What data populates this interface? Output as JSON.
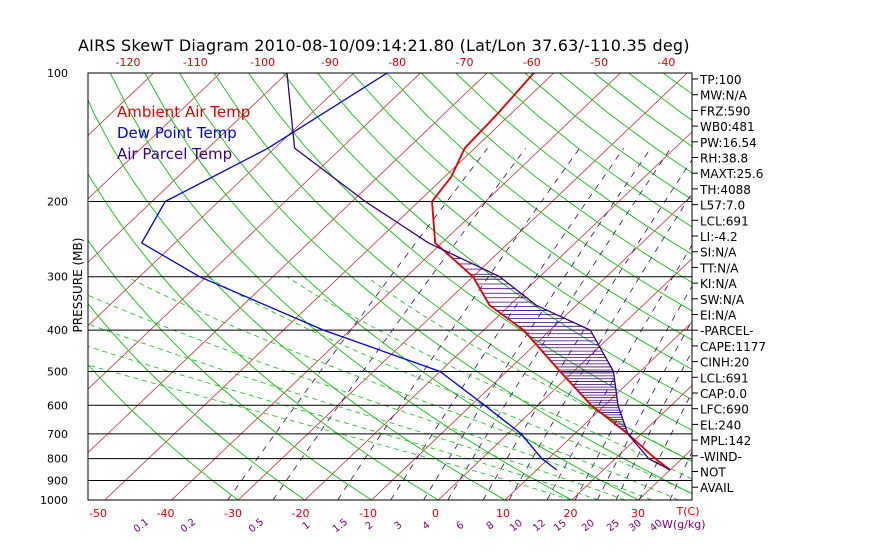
{
  "title": "AIRS SkewT Diagram 2010-08-10/09:14:21.80 (Lat/Lon 37.63/-110.35 deg)",
  "chart_data": {
    "type": "line",
    "title": "AIRS SkewT Diagram 2010-08-10/09:14:21.80 (Lat/Lon 37.63/-110.35 deg)",
    "ylabel": "PRESSURE (MB)",
    "xlabel_bottom_unit": "T(C)",
    "mixing_ratio_unit": "W(g/kg)",
    "y_scale": "log",
    "ylim": [
      1000,
      100
    ],
    "pressure_ticks": [
      100,
      200,
      300,
      400,
      500,
      600,
      700,
      800,
      900,
      1000
    ],
    "top_temp_ticks": [
      -120,
      -110,
      -100,
      -90,
      -80,
      -70,
      -60,
      -50,
      -40
    ],
    "bottom_temp_ticks": [
      -50,
      -40,
      -30,
      -20,
      -10,
      0,
      10,
      20,
      30
    ],
    "mixing_ratio_ticks": [
      "0.1",
      "0.2",
      "0.5",
      "1",
      "1.5",
      "2",
      "3",
      "4",
      "6",
      "8",
      "10",
      "12",
      "15",
      "20",
      "25",
      "30",
      "40"
    ],
    "legend": [
      "Ambient Air Temp",
      "Dew Point Temp",
      "Air Parcel Temp"
    ],
    "legend_position": "top-left",
    "series": [
      {
        "name": "Ambient Air Temp",
        "color": "#e00000",
        "points": [
          [
            100,
            -63
          ],
          [
            125,
            -62
          ],
          [
            150,
            -61.5
          ],
          [
            175,
            -59
          ],
          [
            200,
            -58
          ],
          [
            250,
            -51
          ],
          [
            300,
            -40
          ],
          [
            350,
            -33
          ],
          [
            400,
            -24
          ],
          [
            500,
            -12
          ],
          [
            600,
            -2
          ],
          [
            700,
            8
          ],
          [
            800,
            16
          ],
          [
            850,
            20
          ]
        ]
      },
      {
        "name": "Dew Point Temp",
        "color": "#0000e0",
        "points": [
          [
            100,
            -85
          ],
          [
            150,
            -91
          ],
          [
            200,
            -98
          ],
          [
            250,
            -95
          ],
          [
            300,
            -81
          ],
          [
            400,
            -54
          ],
          [
            500,
            -30
          ],
          [
            600,
            -18
          ],
          [
            700,
            -8
          ],
          [
            800,
            -1
          ],
          [
            850,
            3
          ]
        ]
      },
      {
        "name": "Air Parcel Temp",
        "color": "#3a0080",
        "points": [
          [
            100,
            -100
          ],
          [
            150,
            -87
          ],
          [
            200,
            -68
          ],
          [
            250,
            -52
          ],
          [
            300,
            -36
          ],
          [
            350,
            -26
          ],
          [
            400,
            -14
          ],
          [
            500,
            -4
          ],
          [
            600,
            2
          ],
          [
            700,
            8
          ],
          [
            800,
            15
          ],
          [
            850,
            20
          ]
        ]
      }
    ]
  },
  "indices": [
    "TP:100",
    "MW:N/A",
    "FRZ:590",
    "WB0:481",
    "PW:16.54",
    "RH:38.8",
    "MAXT:25.6",
    "TH:4088",
    "L57:7.0",
    "LCL:691",
    "LI:-4.2",
    "SI:N/A",
    "TT:N/A",
    "KI:N/A",
    "SW:N/A",
    "EI:N/A",
    "-PARCEL-",
    "CAPE:1177",
    "CINH:20",
    "LCL:691",
    "CAP:0.0",
    "LFC:690",
    "EL:240",
    "MPL:142",
    "-WIND-",
    "NOT",
    "AVAIL"
  ],
  "colors": {
    "ambient": "#e00000",
    "dewpoint": "#0000e0",
    "parcel": "#3a0080",
    "isotherm": "#d03030",
    "dry_adiabat": "#10c010",
    "mixing_ratio": "#3a0080",
    "top_ticks": "#e00000",
    "mixing_ticks": "#800080"
  }
}
